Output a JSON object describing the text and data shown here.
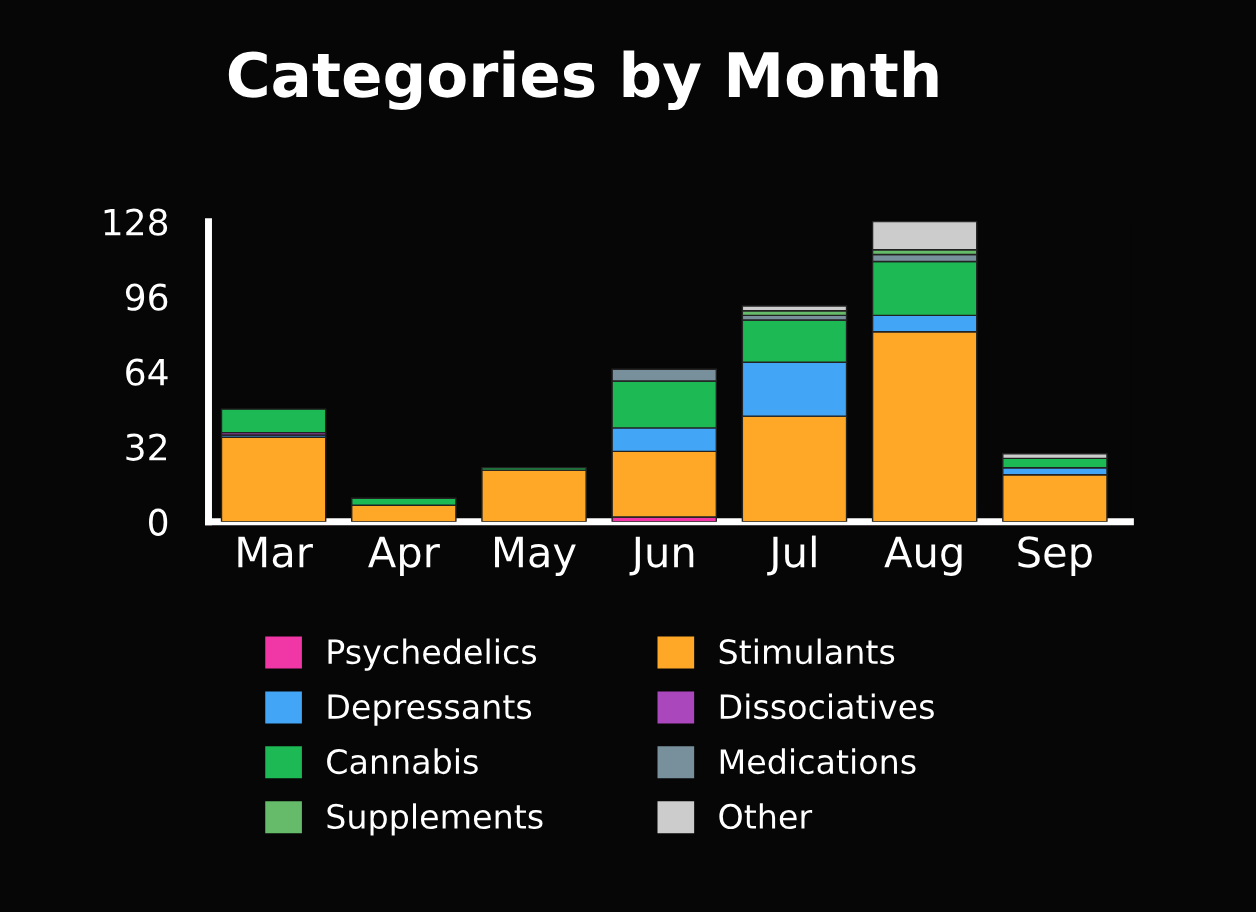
{
  "chart_data": {
    "type": "bar",
    "title": "Categories by Month",
    "stacked": true,
    "categories": [
      "Mar",
      "Apr",
      "May",
      "Jun",
      "Jul",
      "Aug",
      "Sep"
    ],
    "series": [
      {
        "name": "Psychedelics",
        "color": "#f037a5",
        "values": [
          null,
          null,
          null,
          2,
          null,
          null,
          null
        ]
      },
      {
        "name": "Stimulants",
        "color": "#ffa726",
        "values": [
          36,
          7,
          22,
          28,
          45,
          81,
          20
        ]
      },
      {
        "name": "Depressants",
        "color": "#42a5f5",
        "values": [
          1,
          null,
          null,
          10,
          23,
          7,
          3
        ]
      },
      {
        "name": "Dissociatives",
        "color": "#ab47bc",
        "values": [
          1,
          null,
          null,
          null,
          null,
          null,
          null
        ]
      },
      {
        "name": "Cannabis",
        "color": "#1db954",
        "values": [
          10,
          3,
          1,
          20,
          18,
          23,
          4
        ]
      },
      {
        "name": "Medications",
        "color": "#78909c",
        "values": [
          null,
          null,
          null,
          5,
          2,
          3,
          null
        ]
      },
      {
        "name": "Supplements",
        "color": "#66bb6a",
        "values": [
          null,
          null,
          null,
          null,
          2,
          2,
          null
        ]
      },
      {
        "name": "Other",
        "color": "#cccccc",
        "values": [
          null,
          null,
          null,
          null,
          2,
          12,
          2
        ]
      }
    ],
    "ylim": [
      0,
      128
    ],
    "yticks": [
      0,
      32,
      64,
      96,
      128
    ],
    "grid": false,
    "legend": "bottom"
  }
}
